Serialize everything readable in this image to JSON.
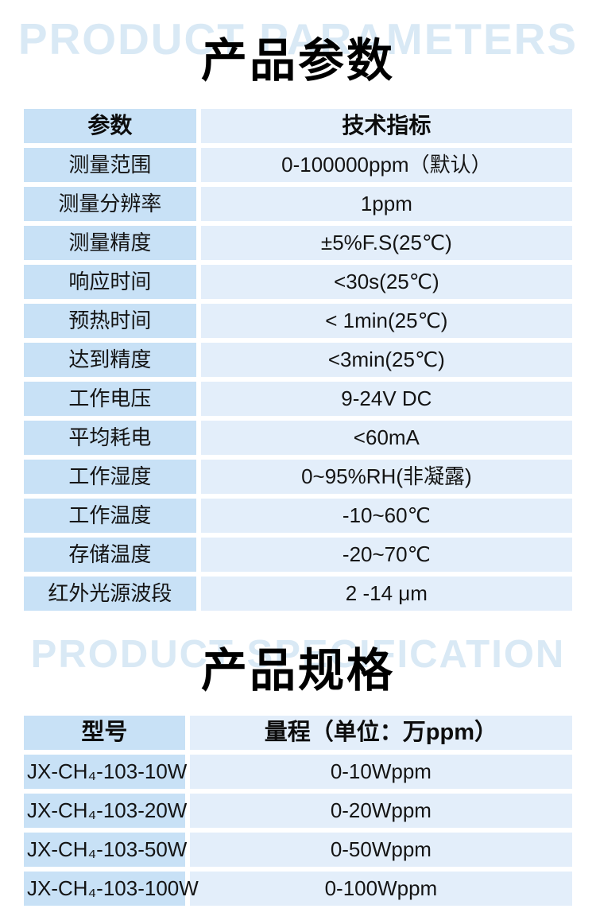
{
  "colors": {
    "page_background": "#ffffff",
    "watermark_text": "#d9e9f5",
    "table_left_cell_bg": "#c8e1f6",
    "table_right_cell_bg": "#e3eefa",
    "title_text": "#000000",
    "body_text": "#141414"
  },
  "sections": {
    "parameters": {
      "watermark": "PRODUCT PARAMETERS",
      "title": "产品参数",
      "table": {
        "headers": [
          "参数",
          "技术指标"
        ],
        "rows": [
          [
            "测量范围",
            "0-100000ppm（默认）"
          ],
          [
            "测量分辨率",
            "1ppm"
          ],
          [
            "测量精度",
            "±5%F.S(25℃)"
          ],
          [
            "响应时间",
            "<30s(25℃)"
          ],
          [
            "预热时间",
            "< 1min(25℃)"
          ],
          [
            "达到精度",
            "<3min(25℃)"
          ],
          [
            "工作电压",
            "9-24V DC"
          ],
          [
            "平均耗电",
            "<60mA"
          ],
          [
            "工作湿度",
            "0~95%RH(非凝露)"
          ],
          [
            "工作温度",
            "-10~60℃"
          ],
          [
            "存储温度",
            "-20~70℃"
          ],
          [
            "红外光源波段",
            "2 -14 μm"
          ]
        ]
      }
    },
    "specification": {
      "watermark": "PRODUCT SPECIFICATION",
      "title": "产品规格",
      "table": {
        "headers": [
          "型号",
          "量程（单位：万ppm）"
        ],
        "rows": [
          [
            "JX-CH₄-103-10W",
            "0-10Wppm"
          ],
          [
            "JX-CH₄-103-20W",
            "0-20Wppm"
          ],
          [
            "JX-CH₄-103-50W",
            "0-50Wppm"
          ],
          [
            "JX-CH₄-103-100W",
            "0-100Wppm"
          ]
        ]
      }
    }
  }
}
